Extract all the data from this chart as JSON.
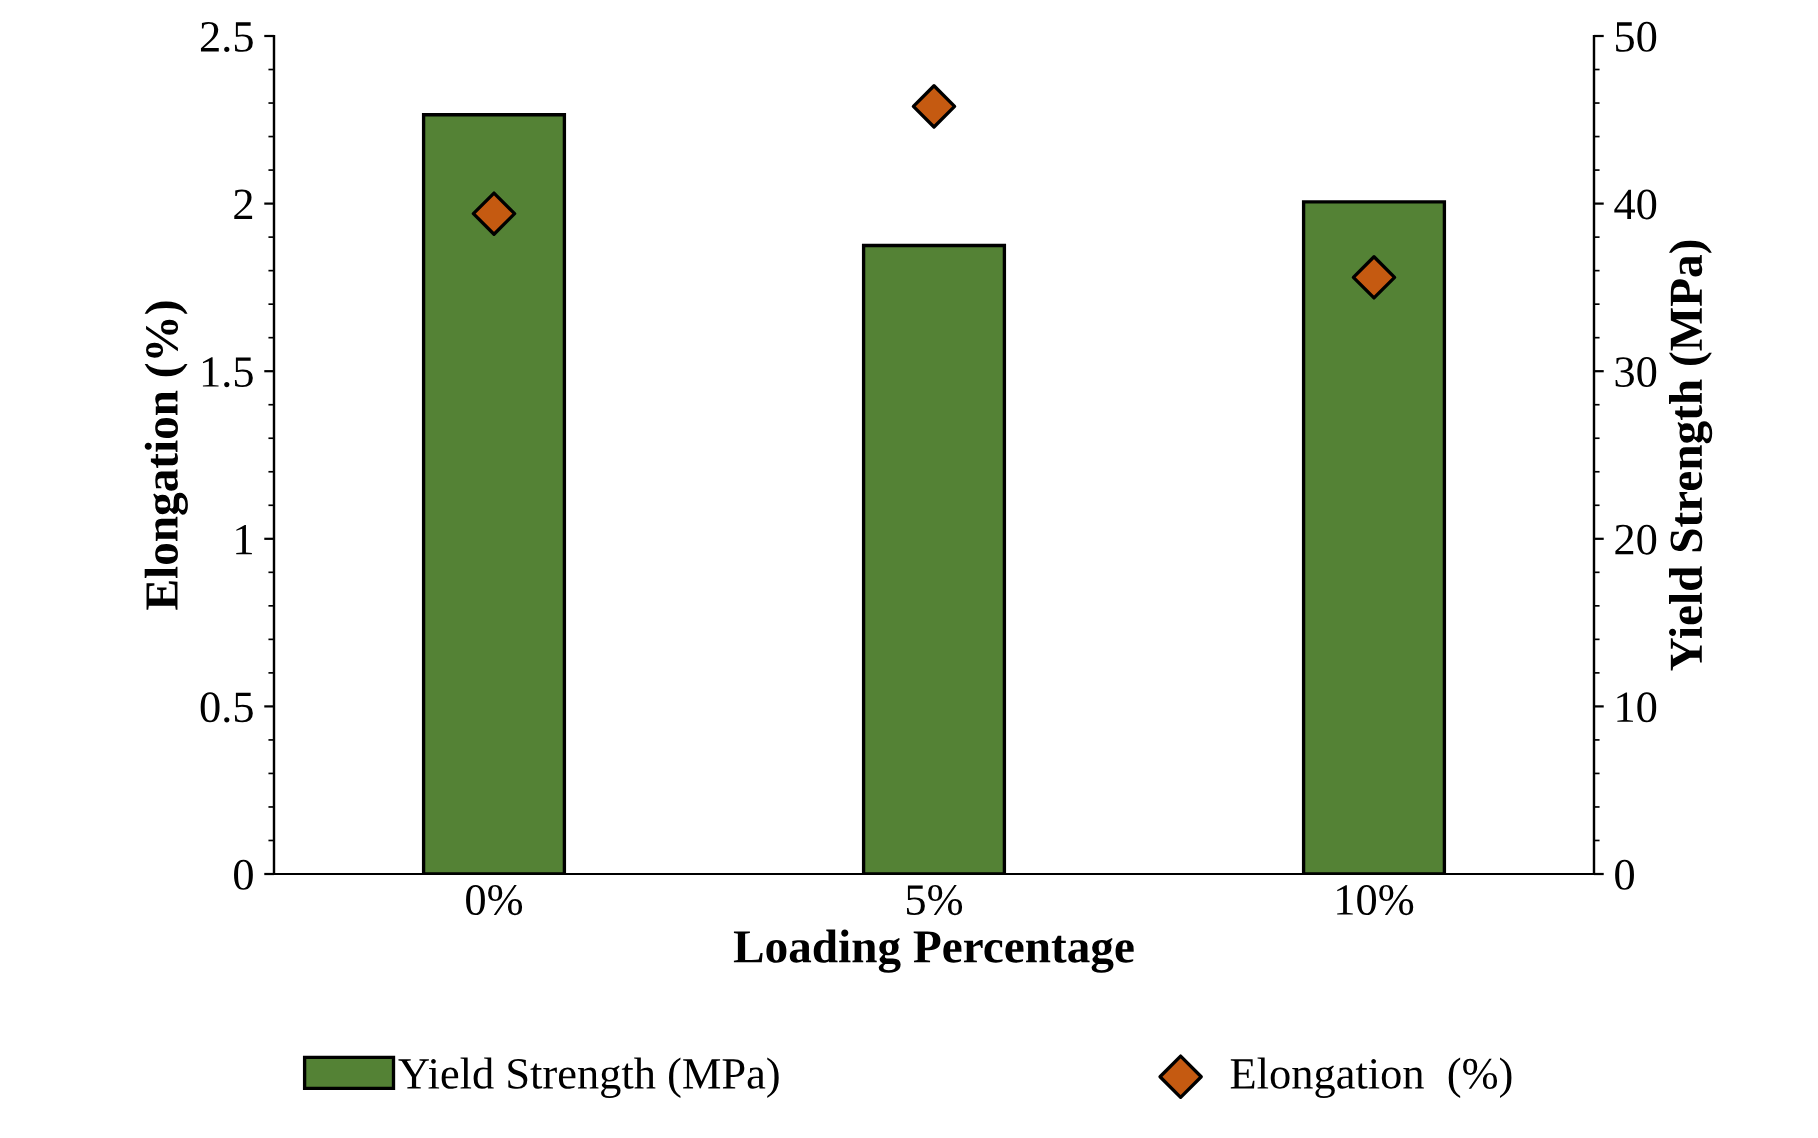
{
  "chart_data": {
    "type": "bar",
    "xlabel": "Loading Percentage",
    "ylabel": "Elongation (%)",
    "y2label": "Yield Strength (MPa)",
    "categories": [
      "0%",
      "5%",
      "10%"
    ],
    "series": [
      {
        "name": "Yield Strength (MPa)",
        "axis": "y2",
        "color": "#548235",
        "values": [
          45.3,
          37.5,
          40.1
        ]
      },
      {
        "name": "Elongation  (%)",
        "type": "scatter",
        "marker": "diamond",
        "color": "#c55a11",
        "values": [
          1.97,
          2.29,
          1.78
        ]
      }
    ],
    "ylim": [
      0,
      2.5
    ],
    "yticks": [
      0,
      0.5,
      1,
      1.5,
      2,
      2.5
    ],
    "y2lim": [
      0,
      50
    ],
    "y2ticks": [
      0,
      10,
      20,
      30,
      40,
      50
    ],
    "legend": "bottom",
    "grid": false
  }
}
